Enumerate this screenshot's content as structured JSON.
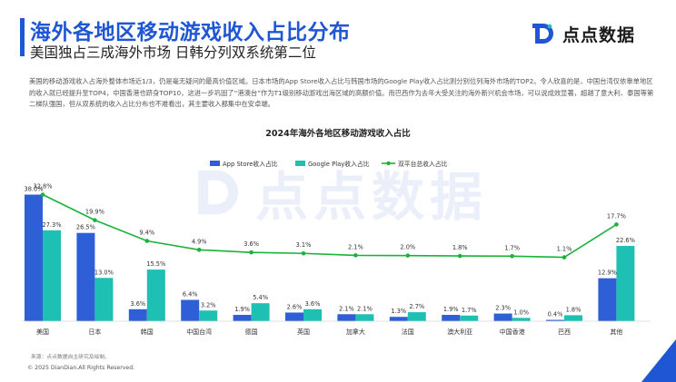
{
  "header": {
    "title": "海外各地区移动游戏收入占比分布",
    "subtitle": "美国独占三成海外市场 日韩分列双系统第二位"
  },
  "brand": {
    "logo_text": "点点数据",
    "watermark_text": "点点数据"
  },
  "intro": "美国的移动游戏收入占海外整体市场近1/3，仍是毫无疑问的最高价值区域。日本市场的App Store收入占比与韩国市场的Google Play收入占比则分别位列海外市场的TOP2。令人欣喜的是，中国台湾仅依靠单地区的收入就已经提升至TOP4，中国香港也跻身TOP10，这进一步巩固了“港澳台”作为T1级别移动游戏出海区域的高额价值。而巴西作为去年大受关注的海外新兴机会市场，可以说成效显著，超越了意大利、泰国等第二梯队强国，但从双系统的收入占比分布也不难看出，其主要收入都集中在安卓端。",
  "footer": {
    "source": "来源：点点数据自主研究及绘制。",
    "copyright": "© 2025 DianDian.All Rights Reserved."
  },
  "colors": {
    "brand_blue": "#1f56d4",
    "app_store": "#2f5fd6",
    "google_play": "#1ec0b4",
    "dual_platform": "#19b23b"
  },
  "chart_data": {
    "type": "bar",
    "title": "2024年海外各地区移动游戏收入占比",
    "categories": [
      "美国",
      "日本",
      "韩国",
      "中国台湾",
      "德国",
      "英国",
      "加拿大",
      "法国",
      "澳大利亚",
      "中国香港",
      "巴西",
      "其他"
    ],
    "series": [
      {
        "name": "App Store收入占比",
        "type": "bar",
        "values": [
          38.0,
          26.5,
          3.6,
          6.4,
          1.9,
          2.6,
          2.1,
          1.3,
          1.9,
          2.3,
          0.4,
          12.9
        ],
        "labels": [
          "38.0%",
          "26.5%",
          "3.6%",
          "6.4%",
          "1.9%",
          "2.6%",
          "2.1%",
          "1.3%",
          "1.9%",
          "2.3%",
          "0.4%",
          "12.9%"
        ]
      },
      {
        "name": "Google Play收入占比",
        "type": "bar",
        "values": [
          27.3,
          13.0,
          15.5,
          3.2,
          5.4,
          3.6,
          2.1,
          2.7,
          1.7,
          1.0,
          1.8,
          22.6
        ],
        "labels": [
          "27.3%",
          "13.0%",
          "15.5%",
          "3.2%",
          "5.4%",
          "3.6%",
          "2.1%",
          "2.7%",
          "1.7%",
          "1.0%",
          "1.8%",
          "22.6%"
        ]
      },
      {
        "name": "双平台总收入占比",
        "type": "line",
        "values": [
          32.8,
          19.9,
          9.4,
          4.9,
          3.6,
          3.1,
          2.1,
          2.0,
          1.8,
          1.7,
          1.1,
          17.7
        ],
        "labels": [
          "32.8%",
          "19.9%",
          "9.4%",
          "4.9%",
          "3.6%",
          "3.1%",
          "2.1%",
          "2.0%",
          "1.8%",
          "1.7%",
          "1.1%",
          "17.7%"
        ]
      }
    ],
    "legend_position": "top-center",
    "grid": false,
    "ylim": [
      0,
      40
    ],
    "unit": "%"
  }
}
